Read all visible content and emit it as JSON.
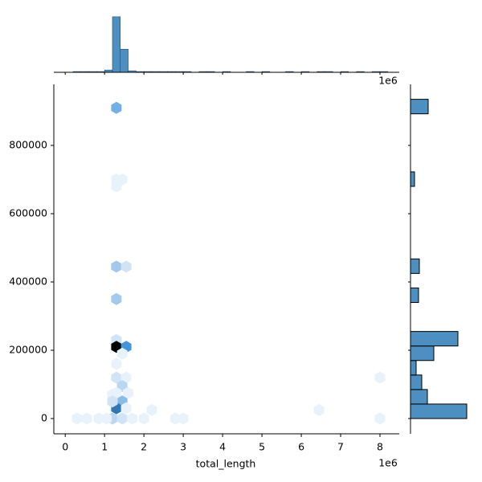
{
  "chart_data": {
    "type": "hexbin-joint",
    "x_label": "total_length",
    "x_offset_label": "1e6",
    "xlim": [
      -0.29,
      8.49
    ],
    "xticks": [
      0,
      1,
      2,
      3,
      4,
      5,
      6,
      7,
      8
    ],
    "ylim": [
      -44700,
      978800
    ],
    "yticks": [
      0,
      200000,
      400000,
      600000,
      800000
    ],
    "color": "#4c8fc0",
    "cmap": [
      "#ffffff",
      "#3a8fd9",
      "#000000"
    ],
    "hexbins": {
      "x": [
        1.3,
        1.3,
        1.45,
        1.3,
        1.3,
        1.55,
        1.3,
        1.3,
        1.3,
        1.55,
        1.45,
        1.3,
        1.3,
        1.55,
        1.45,
        1.3,
        1.2,
        1.6,
        1.45,
        1.3,
        1.2,
        1.55,
        1.2,
        1.45,
        1.05,
        0.3,
        0.55,
        0.85,
        1.7,
        2.0,
        2.2,
        2.8,
        3.0,
        6.45,
        8.0,
        8.0
      ],
      "y": [
        910000,
        700000,
        700000,
        680000,
        445000,
        445000,
        350000,
        230000,
        210000,
        210000,
        190000,
        160000,
        120000,
        120000,
        95000,
        75000,
        70000,
        75000,
        50000,
        30000,
        50000,
        30000,
        0,
        0,
        0,
        0,
        0,
        0,
        0,
        0,
        25000,
        0,
        0,
        25000,
        0,
        120000
      ],
      "counts": [
        6,
        1,
        1,
        1,
        4,
        2,
        4,
        2,
        12,
        8,
        1,
        1,
        2,
        1,
        3,
        1,
        1,
        1,
        5,
        9,
        2,
        1,
        3,
        2,
        1,
        1,
        1,
        1,
        1,
        1,
        1,
        1,
        1,
        1,
        1,
        1
      ]
    },
    "x_hist": {
      "bins": [
        0,
        0.2,
        0.4,
        0.6,
        0.8,
        1.0,
        1.2,
        1.4,
        1.6,
        1.8,
        2.0,
        2.2,
        2.4,
        2.6,
        2.8,
        3.0,
        3.2,
        3.4,
        3.6,
        3.8,
        4.0,
        4.2,
        4.4,
        4.6,
        4.8,
        5.0,
        5.2,
        5.4,
        5.6,
        5.8,
        6.0,
        6.2,
        6.4,
        6.6,
        6.8,
        7.0,
        7.2,
        7.4,
        7.6,
        7.8,
        8.0,
        8.2,
        8.4
      ],
      "counts": [
        0,
        1,
        1,
        1,
        1,
        3,
        72,
        30,
        2,
        1,
        1,
        1,
        1,
        1,
        1,
        1,
        0,
        1,
        1,
        0,
        1,
        0,
        0,
        1,
        0,
        1,
        0,
        0,
        1,
        0,
        1,
        0,
        1,
        1,
        0,
        1,
        0,
        1,
        0,
        1,
        1,
        0
      ],
      "ylim": [
        0,
        75
      ]
    },
    "y_hist": {
      "bins": [
        0,
        42500,
        85000,
        127500,
        170000,
        212500,
        255000,
        297500,
        340000,
        382500,
        425000,
        467500,
        510000,
        552500,
        595000,
        637500,
        680000,
        722500,
        765000,
        807500,
        850000,
        892500,
        935000
      ],
      "counts": [
        70,
        21,
        14,
        7,
        29,
        59,
        0,
        0,
        10,
        0,
        11,
        0,
        0,
        0,
        0,
        0,
        5,
        0,
        0,
        0,
        0,
        22
      ],
      "xlim": [
        0,
        72
      ]
    }
  }
}
